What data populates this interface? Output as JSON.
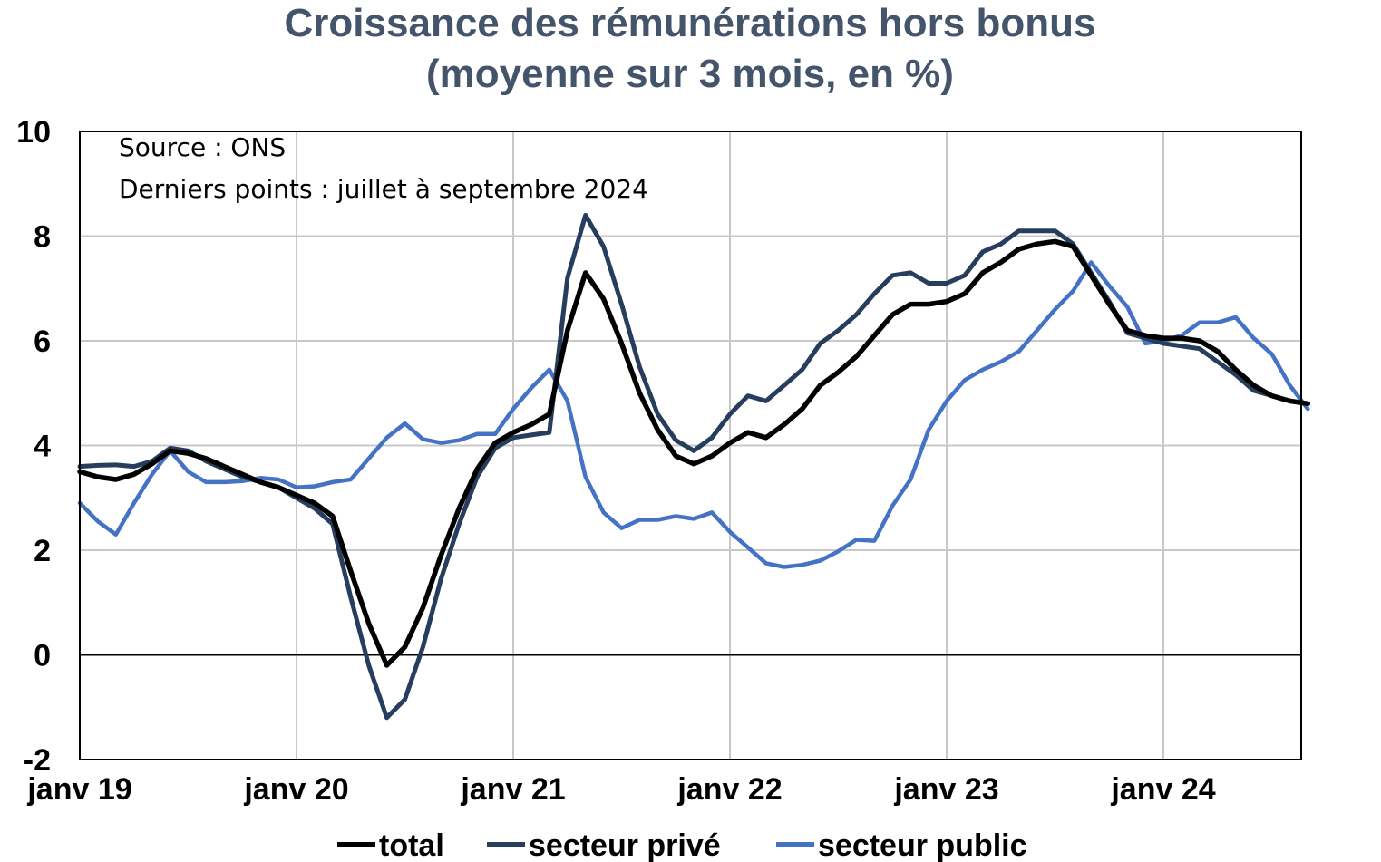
{
  "chart_data": {
    "type": "line",
    "title": "Croissance des rémunérations hors bonus",
    "subtitle": "(moyenne sur 3 mois, en %)",
    "annotations": [
      "Source : ONS",
      "Derniers points : juillet à septembre 2024"
    ],
    "x_tick_labels": [
      "janv 19",
      "janv 20",
      "janv 21",
      "janv 22",
      "janv 23",
      "janv 24"
    ],
    "y_ticks": [
      -2,
      0,
      2,
      4,
      6,
      8,
      10
    ],
    "ylim": [
      -2,
      10
    ],
    "x_range": [
      "2019-01",
      "2024-09"
    ],
    "grid": true,
    "legend_position": "bottom",
    "x": [
      "2019-01",
      "2019-02",
      "2019-03",
      "2019-04",
      "2019-05",
      "2019-06",
      "2019-07",
      "2019-08",
      "2019-09",
      "2019-10",
      "2019-11",
      "2019-12",
      "2020-01",
      "2020-02",
      "2020-03",
      "2020-04",
      "2020-05",
      "2020-06",
      "2020-07",
      "2020-08",
      "2020-09",
      "2020-10",
      "2020-11",
      "2020-12",
      "2021-01",
      "2021-02",
      "2021-03",
      "2021-04",
      "2021-05",
      "2021-06",
      "2021-07",
      "2021-08",
      "2021-09",
      "2021-10",
      "2021-11",
      "2021-12",
      "2022-01",
      "2022-02",
      "2022-03",
      "2022-04",
      "2022-05",
      "2022-06",
      "2022-07",
      "2022-08",
      "2022-09",
      "2022-10",
      "2022-11",
      "2022-12",
      "2023-01",
      "2023-02",
      "2023-03",
      "2023-04",
      "2023-05",
      "2023-06",
      "2023-07",
      "2023-08",
      "2023-09",
      "2023-10",
      "2023-11",
      "2023-12",
      "2024-01",
      "2024-02",
      "2024-03",
      "2024-04",
      "2024-05",
      "2024-06",
      "2024-07",
      "2024-08",
      "2024-09"
    ],
    "series": [
      {
        "name": "total",
        "color": "#000000",
        "values": [
          3.5,
          3.4,
          3.35,
          3.45,
          3.65,
          3.9,
          3.85,
          3.75,
          3.6,
          3.45,
          3.3,
          3.2,
          3.05,
          2.9,
          2.65,
          1.6,
          0.6,
          -0.2,
          0.15,
          0.9,
          1.9,
          2.8,
          3.55,
          4.05,
          4.25,
          4.4,
          4.6,
          6.2,
          7.3,
          6.8,
          5.95,
          5.0,
          4.3,
          3.8,
          3.65,
          3.8,
          4.05,
          4.25,
          4.15,
          4.4,
          4.7,
          5.15,
          5.4,
          5.7,
          6.1,
          6.5,
          6.7,
          6.7,
          6.75,
          6.9,
          7.3,
          7.5,
          7.75,
          7.85,
          7.9,
          7.8,
          7.25,
          6.7,
          6.2,
          6.1,
          6.05,
          6.05,
          6.0,
          5.8,
          5.45,
          5.15,
          4.95,
          4.85,
          4.8
        ]
      },
      {
        "name": "secteur privé",
        "color": "#263d5e",
        "values": [
          3.6,
          3.62,
          3.63,
          3.6,
          3.7,
          3.95,
          3.9,
          3.7,
          3.55,
          3.4,
          3.3,
          3.2,
          3.0,
          2.8,
          2.5,
          1.1,
          -0.2,
          -1.2,
          -0.85,
          0.15,
          1.45,
          2.5,
          3.4,
          3.95,
          4.15,
          4.2,
          4.25,
          7.2,
          8.4,
          7.8,
          6.7,
          5.5,
          4.6,
          4.1,
          3.9,
          4.15,
          4.6,
          4.95,
          4.85,
          5.15,
          5.45,
          5.95,
          6.2,
          6.5,
          6.9,
          7.25,
          7.3,
          7.1,
          7.1,
          7.25,
          7.7,
          7.85,
          8.1,
          8.1,
          8.1,
          7.85,
          7.3,
          6.75,
          6.15,
          6.05,
          5.95,
          5.9,
          5.85,
          5.6,
          5.35,
          5.05,
          4.95,
          4.85,
          4.8
        ]
      },
      {
        "name": "secteur public",
        "color": "#4472c4",
        "values": [
          2.9,
          2.55,
          2.3,
          2.9,
          3.45,
          3.9,
          3.5,
          3.3,
          3.3,
          3.32,
          3.38,
          3.35,
          3.2,
          3.22,
          3.3,
          3.35,
          3.75,
          4.15,
          4.42,
          4.12,
          4.05,
          4.1,
          4.22,
          4.22,
          4.7,
          5.1,
          5.45,
          4.85,
          3.4,
          2.72,
          2.42,
          2.58,
          2.58,
          2.65,
          2.6,
          2.72,
          2.35,
          2.05,
          1.75,
          1.68,
          1.72,
          1.8,
          1.98,
          2.2,
          2.18,
          2.85,
          3.35,
          4.3,
          4.85,
          5.25,
          5.45,
          5.6,
          5.8,
          6.2,
          6.6,
          6.95,
          7.5,
          7.05,
          6.65,
          5.95,
          6.0,
          6.1,
          6.35,
          6.35,
          6.45,
          6.05,
          5.75,
          5.15,
          4.7
        ]
      }
    ]
  }
}
